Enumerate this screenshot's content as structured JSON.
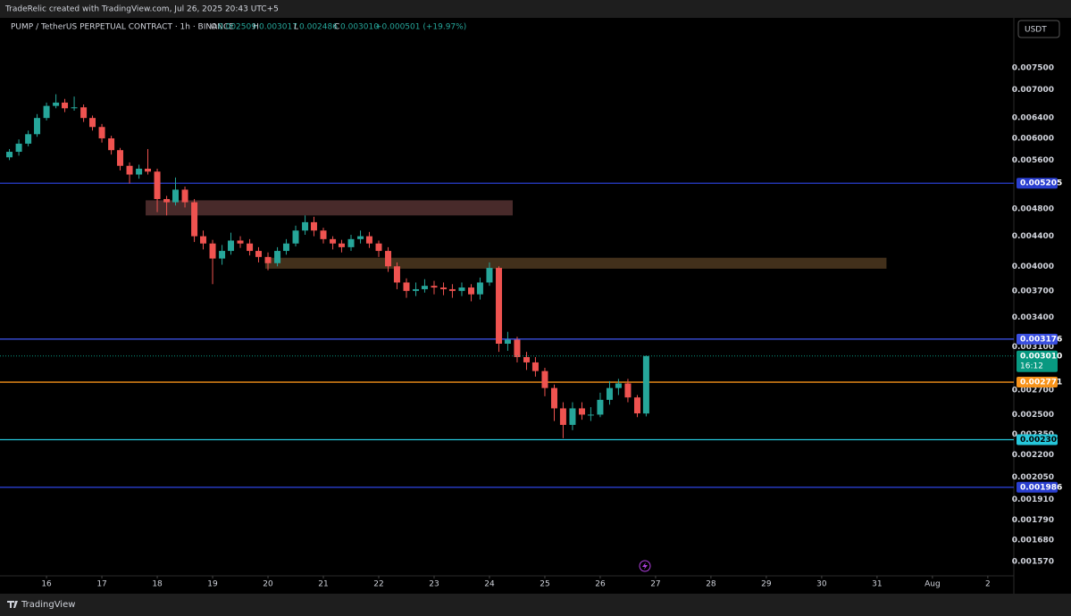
{
  "credit": "TradeRelic created with TradingView.com, Jul 26, 2025 20:43 UTC+5",
  "footer": "TradingView",
  "currency": "USDT",
  "chart_data": {
    "type": "candlestick",
    "title": "PUMP / TetherUS PERPETUAL CONTRACT · 1h · BINANCE",
    "legend": {
      "o_label": "O",
      "o": "0.002509",
      "h_label": "H",
      "h": "0.003017",
      "l_label": "L",
      "l": "0.002486",
      "c_label": "C",
      "c": "0.003010",
      "change": "+0.000501 (+19.97%)"
    },
    "log_scale": true,
    "up_color": "#26a69a",
    "down_color": "#ef5350",
    "xlim": [
      15.16,
      33.47
    ],
    "ylim": [
      0.0015,
      0.00879
    ],
    "xticks": [
      16,
      17,
      18,
      19,
      20,
      21,
      22,
      23,
      24,
      25,
      26,
      27,
      28,
      29,
      30,
      31,
      {
        "value": 32,
        "label": "Aug"
      },
      {
        "value": 33,
        "label": "2"
      }
    ],
    "yticks": [
      {
        "value": 0.0075,
        "label": "0.007500"
      },
      {
        "value": 0.007,
        "label": "0.007000"
      },
      {
        "value": 0.0064,
        "label": "0.006400"
      },
      {
        "value": 0.006,
        "label": "0.006000"
      },
      {
        "value": 0.0056,
        "label": "0.005600"
      },
      {
        "value": 0.0048,
        "label": "0.004800"
      },
      {
        "value": 0.0044,
        "label": "0.004400"
      },
      {
        "value": 0.004,
        "label": "0.004000"
      },
      {
        "value": 0.0037,
        "label": "0.003700"
      },
      {
        "value": 0.0034,
        "label": "0.003400"
      },
      {
        "value": 0.0031,
        "label": "0.003100"
      },
      {
        "value": 0.0027,
        "label": "0.002700"
      },
      {
        "value": 0.0025,
        "label": "0.002500"
      },
      {
        "value": 0.00235,
        "label": "0.002350"
      },
      {
        "value": 0.0022,
        "label": "0.002200"
      },
      {
        "value": 0.00205,
        "label": "0.002050"
      },
      {
        "value": 0.00191,
        "label": "0.001910"
      },
      {
        "value": 0.00179,
        "label": "0.001790"
      },
      {
        "value": 0.00168,
        "label": "0.001680"
      },
      {
        "value": 0.00157,
        "label": "0.001570"
      }
    ],
    "candles": {
      "x": [
        15.33,
        15.5,
        15.67,
        15.83,
        16,
        16.17,
        16.33,
        16.5,
        16.67,
        16.83,
        17,
        17.17,
        17.33,
        17.5,
        17.67,
        17.83,
        18,
        18.17,
        18.33,
        18.5,
        18.67,
        18.83,
        19,
        19.17,
        19.33,
        19.5,
        19.67,
        19.83,
        20,
        20.17,
        20.33,
        20.5,
        20.67,
        20.83,
        21,
        21.17,
        21.33,
        21.5,
        21.67,
        21.83,
        22,
        22.17,
        22.33,
        22.5,
        22.67,
        22.83,
        23,
        23.17,
        23.33,
        23.5,
        23.67,
        23.83,
        24,
        24.17,
        24.33,
        24.5,
        24.67,
        24.83,
        25,
        25.17,
        25.33,
        25.5,
        25.67,
        25.83,
        26,
        26.17,
        26.33,
        26.5,
        26.67,
        26.83
      ],
      "open": [
        0.00565,
        0.00575,
        0.0059,
        0.00608,
        0.0064,
        0.00665,
        0.00672,
        0.0066,
        0.00662,
        0.0064,
        0.00622,
        0.006,
        0.00578,
        0.0055,
        0.00535,
        0.00545,
        0.0054,
        0.00495,
        0.0049,
        0.0051,
        0.0049,
        0.0044,
        0.0043,
        0.0041,
        0.0042,
        0.00434,
        0.0043,
        0.0042,
        0.00412,
        0.00404,
        0.0042,
        0.0043,
        0.00448,
        0.0046,
        0.00448,
        0.00436,
        0.0043,
        0.00425,
        0.00436,
        0.0044,
        0.0043,
        0.0042,
        0.004,
        0.0038,
        0.0037,
        0.00372,
        0.00376,
        0.00374,
        0.00372,
        0.0037,
        0.00374,
        0.00366,
        0.0038,
        0.00398,
        0.00313,
        0.00317,
        0.003,
        0.00295,
        0.00287,
        0.00272,
        0.00255,
        0.00242,
        0.00255,
        0.0025,
        0.0025,
        0.00262,
        0.00272,
        0.00276,
        0.00264,
        0.002509
      ],
      "high": [
        0.0058,
        0.00598,
        0.00615,
        0.00648,
        0.00672,
        0.0069,
        0.0068,
        0.00685,
        0.00668,
        0.00645,
        0.00628,
        0.00605,
        0.00582,
        0.00556,
        0.00552,
        0.0058,
        0.00545,
        0.005,
        0.0053,
        0.00515,
        0.00495,
        0.00448,
        0.00435,
        0.00428,
        0.00445,
        0.0044,
        0.00436,
        0.00425,
        0.00418,
        0.00425,
        0.00436,
        0.00455,
        0.0047,
        0.00468,
        0.00452,
        0.0044,
        0.00435,
        0.00442,
        0.00448,
        0.00446,
        0.00434,
        0.00425,
        0.00405,
        0.00385,
        0.0038,
        0.00384,
        0.00382,
        0.0038,
        0.00378,
        0.0038,
        0.00378,
        0.00386,
        0.00405,
        0.004,
        0.00325,
        0.0032,
        0.00305,
        0.003,
        0.0029,
        0.00275,
        0.0026,
        0.0026,
        0.0026,
        0.00256,
        0.00268,
        0.00278,
        0.0028,
        0.0028,
        0.00266,
        0.003017
      ],
      "low": [
        0.0056,
        0.00568,
        0.00585,
        0.00603,
        0.00635,
        0.0066,
        0.00652,
        0.00655,
        0.00632,
        0.00615,
        0.00592,
        0.0057,
        0.00542,
        0.0052,
        0.00528,
        0.00535,
        0.00475,
        0.0047,
        0.00485,
        0.00482,
        0.00432,
        0.00422,
        0.00378,
        0.00402,
        0.00415,
        0.00424,
        0.00414,
        0.00405,
        0.00395,
        0.004,
        0.00415,
        0.00426,
        0.00442,
        0.0044,
        0.0043,
        0.00422,
        0.00418,
        0.0042,
        0.0043,
        0.00424,
        0.00412,
        0.00393,
        0.00372,
        0.00362,
        0.00364,
        0.00368,
        0.00366,
        0.00365,
        0.00362,
        0.00364,
        0.00358,
        0.0036,
        0.00376,
        0.00305,
        0.00306,
        0.00295,
        0.00288,
        0.00282,
        0.00265,
        0.00245,
        0.00232,
        0.00238,
        0.00246,
        0.00245,
        0.00248,
        0.00258,
        0.00266,
        0.0026,
        0.00248,
        0.002486
      ],
      "close": [
        0.00575,
        0.0059,
        0.00608,
        0.0064,
        0.00665,
        0.00672,
        0.0066,
        0.00662,
        0.0064,
        0.00622,
        0.006,
        0.00578,
        0.0055,
        0.00535,
        0.00545,
        0.0054,
        0.00495,
        0.0049,
        0.0051,
        0.0049,
        0.0044,
        0.0043,
        0.0041,
        0.0042,
        0.00434,
        0.0043,
        0.0042,
        0.00412,
        0.00404,
        0.0042,
        0.0043,
        0.00448,
        0.0046,
        0.00448,
        0.00436,
        0.0043,
        0.00425,
        0.00436,
        0.0044,
        0.0043,
        0.0042,
        0.004,
        0.0038,
        0.0037,
        0.00372,
        0.00376,
        0.00374,
        0.00372,
        0.0037,
        0.00374,
        0.00366,
        0.0038,
        0.00398,
        0.00313,
        0.00317,
        0.003,
        0.00295,
        0.00287,
        0.00272,
        0.00255,
        0.00242,
        0.00255,
        0.0025,
        0.0025,
        0.00262,
        0.00272,
        0.00276,
        0.00264,
        0.00251,
        0.00301
      ]
    },
    "zones": [
      {
        "x": [
          17.79,
          24.42
        ],
        "y": [
          0.0047,
          0.00493
        ],
        "color": "rgba(120,70,70,0.6)"
      },
      {
        "x": [
          19.95,
          31.17
        ],
        "y": [
          0.00397,
          0.00411
        ],
        "color": "rgba(110,80,45,0.6)"
      }
    ],
    "hlines": [
      {
        "value": 0.005205,
        "color": "#2a3fd0"
      },
      {
        "value": 0.003176,
        "color": "#3a4fe0"
      },
      {
        "value": 0.002771,
        "color": "#f7931a"
      },
      {
        "value": 0.002309,
        "color": "#26c6da"
      },
      {
        "value": 0.001986,
        "color": "#2a3fd0"
      }
    ],
    "last_price": {
      "value": 0.00301,
      "label": "0.003010",
      "countdown": "16:12",
      "color": "#089981"
    }
  }
}
